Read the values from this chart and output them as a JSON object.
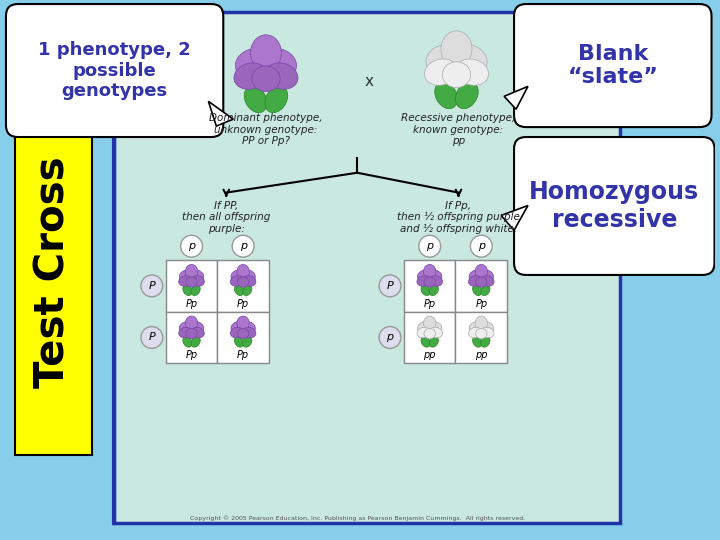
{
  "bg_color": "#87CEEB",
  "slide_bg": "#C8E8E0",
  "diagram_border": "#2233AA",
  "yellow_color": "#FFFF00",
  "black": "#000000",
  "white": "#FFFFFF",
  "label_color": "#3333AA",
  "title_box_text": "1 phenotype, 2\npossible\ngenotypes",
  "blank_slate_text": "Blank\n“slate”",
  "homozygous_text": "Homozygous\nrecessive",
  "test_cross_text": "Test Cross",
  "dom_label": "Dominant phenotype,\nunknown genotype:\nPP or Pp?",
  "rec_label": "Recessive phenotype,\nknown genotype:\npp",
  "if_pp_text": "If PP,\nthen all offspring\npurple:",
  "if_pp_text2": "If Pp,\nthen ½ offspring purple\nand ½ offspring white:",
  "copyright": "Copyright © 2005 Pearson Education, Inc. Publishing as Pearson Benjamin Cummings.  All rights reserved."
}
